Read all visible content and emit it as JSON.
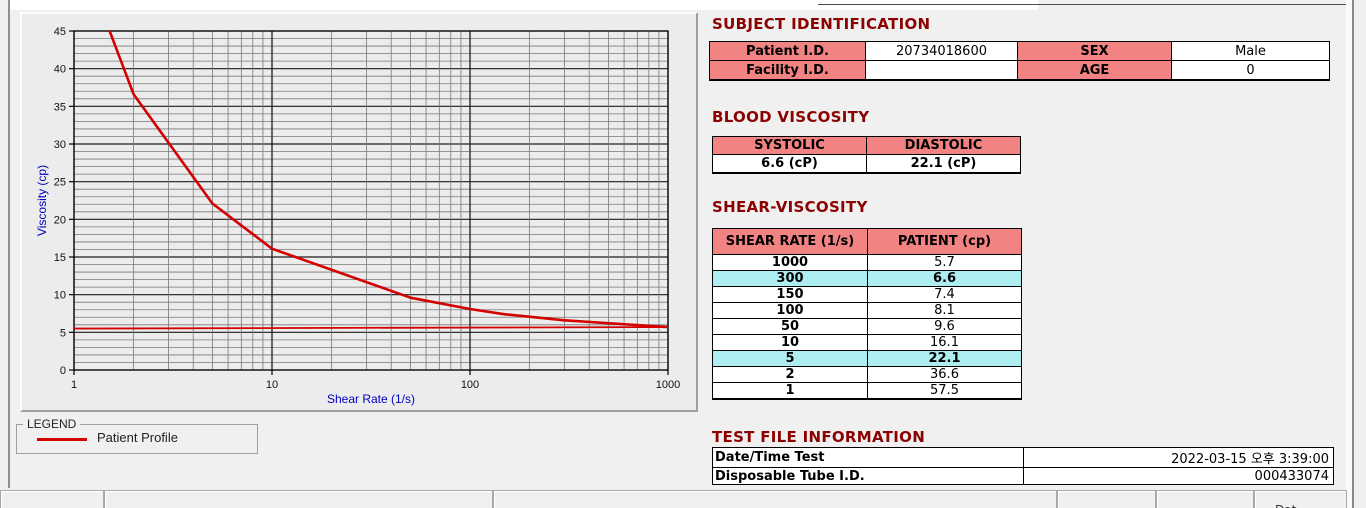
{
  "colors": {
    "pink_header": "#f28383",
    "cyan_highlight": "#aeeef0",
    "maroon_heading": "#8b0000",
    "chart_red": "#d40000",
    "axis_blue": "#0000bf"
  },
  "subject_identification": {
    "title": "SUBJECT IDENTIFICATION",
    "rows": [
      [
        "Patient I.D.",
        "20734018600",
        "SEX",
        "Male"
      ],
      [
        "Facility I.D.",
        "",
        "AGE",
        "0"
      ]
    ]
  },
  "blood_viscosity": {
    "title": "BLOOD VISCOSITY",
    "headers": [
      "SYSTOLIC",
      "DIASTOLIC"
    ],
    "values": [
      "6.6 (cP)",
      "22.1 (cP)"
    ]
  },
  "shear_viscosity": {
    "title": "SHEAR-VISCOSITY",
    "headers": [
      "SHEAR RATE (1/s)",
      "PATIENT (cp)"
    ],
    "rows": [
      {
        "rate": "1000",
        "patient": "5.7",
        "highlight": false
      },
      {
        "rate": "300",
        "patient": "6.6",
        "highlight": true
      },
      {
        "rate": "150",
        "patient": "7.4",
        "highlight": false
      },
      {
        "rate": "100",
        "patient": "8.1",
        "highlight": false
      },
      {
        "rate": "50",
        "patient": "9.6",
        "highlight": false
      },
      {
        "rate": "10",
        "patient": "16.1",
        "highlight": false
      },
      {
        "rate": "5",
        "patient": "22.1",
        "highlight": true
      },
      {
        "rate": "2",
        "patient": "36.6",
        "highlight": false
      },
      {
        "rate": "1",
        "patient": "57.5",
        "highlight": false
      }
    ]
  },
  "test_file_information": {
    "title": "TEST FILE INFORMATION",
    "rows": [
      {
        "label": "Date/Time Test",
        "value": "2022-03-15  오후 3:39:00"
      },
      {
        "label": "Disposable Tube I.D.",
        "value": "000433074"
      }
    ]
  },
  "legend": {
    "caption": "LEGEND",
    "series_label": "Patient Profile"
  },
  "status_bar": {
    "segments": [
      "",
      "",
      "",
      "",
      "",
      "Dat"
    ]
  },
  "chart_data": {
    "type": "line",
    "title": "",
    "xlabel": "Shear Rate (1/s)",
    "ylabel": "Viscosity (cp)",
    "x_scale": "log",
    "xlim": [
      1,
      1000
    ],
    "ylim": [
      0,
      45
    ],
    "x_major_ticks": [
      1,
      10,
      100,
      1000
    ],
    "y_major_ticks": [
      0,
      5,
      10,
      15,
      20,
      25,
      30,
      35,
      40,
      45
    ],
    "y_minor_step": 1,
    "grid": true,
    "legend_position": "outside-bottom-left",
    "series": [
      {
        "name": "Patient Profile",
        "color": "#d40000",
        "x": [
          1,
          2,
          5,
          10,
          50,
          100,
          150,
          300,
          1000
        ],
        "y": [
          57.5,
          36.6,
          22.1,
          16.1,
          9.6,
          8.1,
          7.4,
          6.6,
          5.7
        ]
      }
    ],
    "reference_line": {
      "y": 5.5,
      "color": "#d40000"
    }
  }
}
